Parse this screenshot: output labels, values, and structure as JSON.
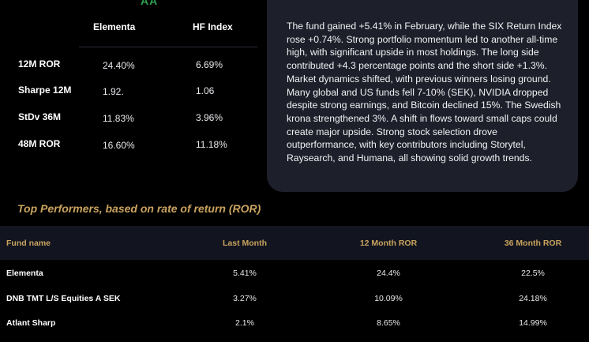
{
  "colors": {
    "rating": "#2ea04f",
    "accent_gold": "#c9a35f",
    "panel": "#1d1f2a",
    "table_header": "#12151f"
  },
  "rating": "AA",
  "metrics": {
    "columns": [
      "Elementa",
      "HF Index"
    ],
    "rows": [
      {
        "label": "12M ROR",
        "elementa": "24.40%",
        "hf_index": "6.69%"
      },
      {
        "label": "Sharpe 12M",
        "elementa": "1.92.",
        "hf_index": "1.06"
      },
      {
        "label": "StDv 36M",
        "elementa": "11.83%",
        "hf_index": "3.96%"
      },
      {
        "label": "48M ROR",
        "elementa": "16.60%",
        "hf_index": "11.18%"
      }
    ]
  },
  "commentary": "The fund gained +5.41% in February, while the SIX Return Index rose +0.74%. Strong portfolio momentum led to another all-time high, with significant upside in most holdings. The long side contributed +4.3 percentage points and the short side +1.3%. Market dynamics shifted, with previous winners losing ground. Many global and US funds fell 7-10% (SEK), NVIDIA dropped despite strong earnings, and Bitcoin declined 15%. The Swedish krona strengthened 3%. A shift in flows toward small caps could create major upside. Strong stock selection drove outperformance, with key contributors including Storytel, Raysearch, and Humana, all showing solid growth trends.",
  "top_performers": {
    "title": "Top Performers, based on rate of return (ROR)",
    "headers": [
      "Fund name",
      "Last Month",
      "12 Month ROR",
      "36 Month ROR"
    ],
    "rows": [
      {
        "name": "Elementa",
        "last_month": "5.41%",
        "ror_12m": "24.4%",
        "ror_36m": "22.5%"
      },
      {
        "name": "DNB TMT L/S Equities A SEK",
        "last_month": "3.27%",
        "ror_12m": "10.09%",
        "ror_36m": "24.18%"
      },
      {
        "name": "Atlant Sharp",
        "last_month": "2.1%",
        "ror_12m": "8.65%",
        "ror_36m": "14.99%"
      }
    ]
  }
}
